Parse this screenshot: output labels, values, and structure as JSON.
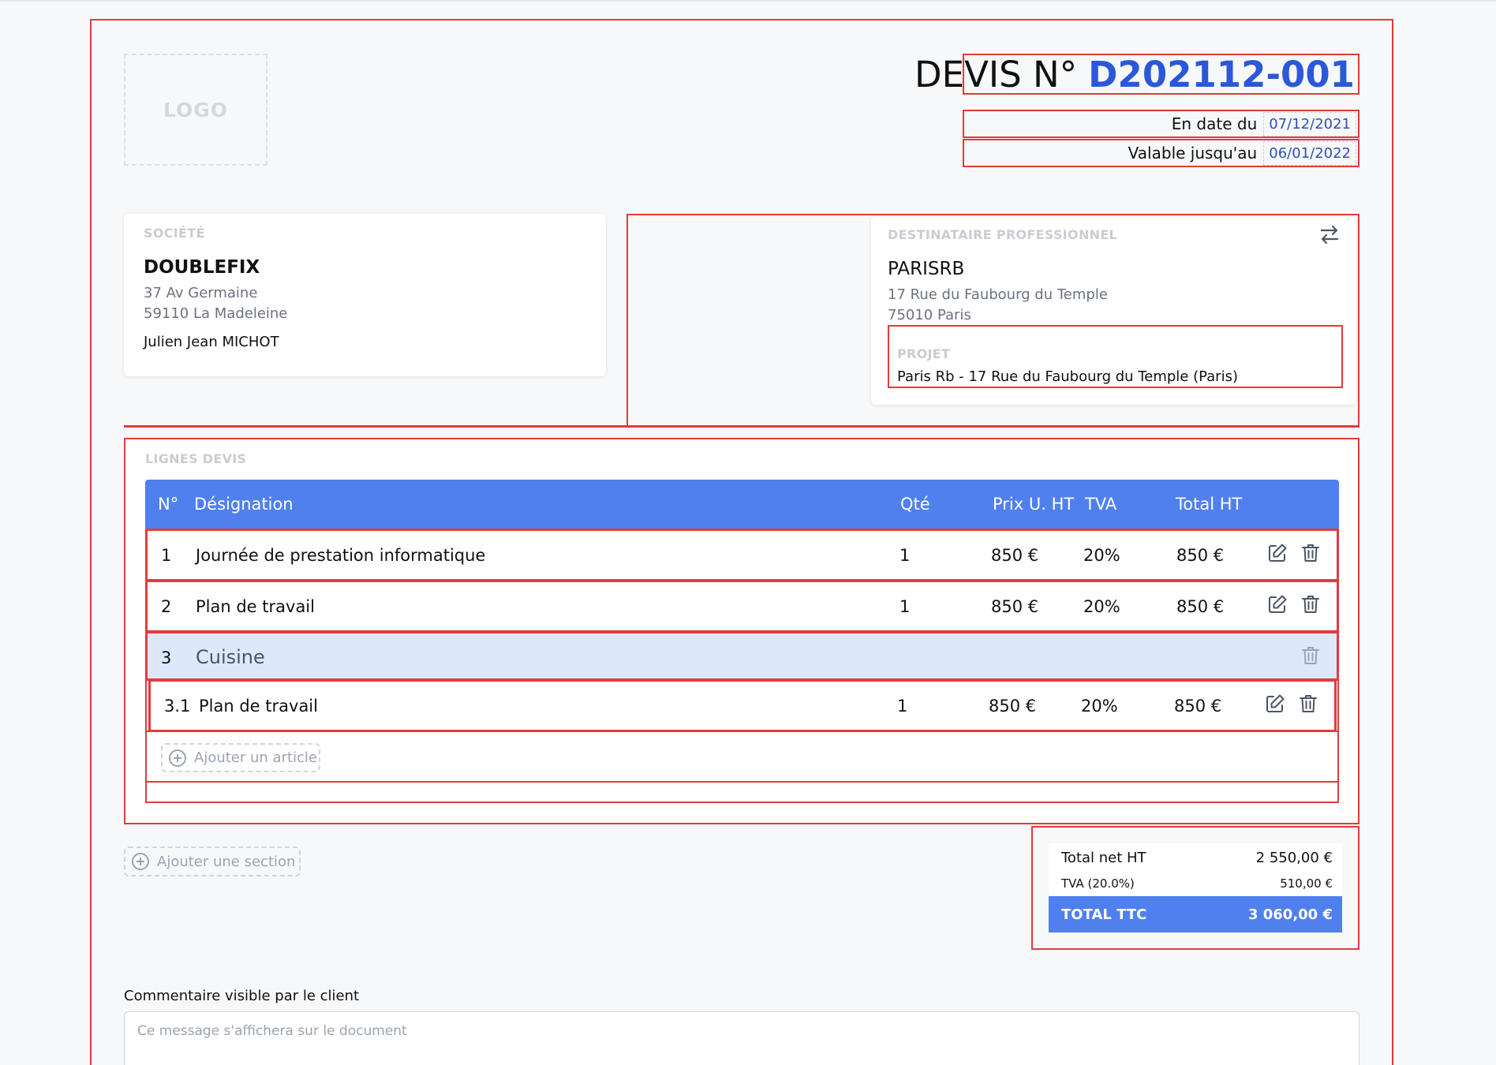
{
  "logo": {
    "label": "LOGO"
  },
  "quote": {
    "title_label": "DEVIS N°",
    "number": "D202112-001",
    "date_label": "En date du",
    "date_value": "07/12/2021",
    "valid_label": "Valable jusqu'au",
    "valid_value": "06/01/2022"
  },
  "company": {
    "section_label": "SOCIÉTÉ",
    "name": "DOUBLEFIX",
    "address_line1": "37 Av Germaine",
    "address_line2": "59110 La Madeleine",
    "contact": "Julien Jean MICHOT"
  },
  "recipient": {
    "section_label": "DESTINATAIRE PROFESSIONNEL",
    "name": "PARISRB",
    "address_line1": "17 Rue du Faubourg du Temple",
    "address_line2": "75010 Paris",
    "project_label": "PROJET",
    "project_value": "Paris Rb - 17 Rue du Faubourg du Temple (Paris)",
    "swap_icon": "swap-arrows-icon"
  },
  "lines": {
    "section_label": "LIGNES DEVIS",
    "headers": {
      "num": "N°",
      "designation": "Désignation",
      "qty": "Qté",
      "unit_price": "Prix U. HT",
      "vat": "TVA",
      "total": "Total HT"
    },
    "rows": [
      {
        "num": "1",
        "designation": "Journée de prestation informatique",
        "qty": "1",
        "unit_price": "850 €",
        "vat": "20%",
        "total": "850 €"
      },
      {
        "num": "2",
        "designation": "Plan de travail",
        "qty": "1",
        "unit_price": "850 €",
        "vat": "20%",
        "total": "850 €"
      }
    ],
    "section": {
      "num": "3",
      "title": "Cuisine"
    },
    "sub_rows": [
      {
        "num": "3.1",
        "designation": "Plan de travail",
        "qty": "1",
        "unit_price": "850 €",
        "vat": "20%",
        "total": "850 €"
      }
    ],
    "add_article_label": "Ajouter un article"
  },
  "add_section_label": "Ajouter une section",
  "totals": {
    "net_label": "Total net HT",
    "net_value": "2 550,00 €",
    "vat_label": "TVA (20.0%)",
    "vat_value": "510,00 €",
    "ttc_label": "TOTAL TTC",
    "ttc_value": "3 060,00 €"
  },
  "comment": {
    "label": "Commentaire visible par le client",
    "placeholder": "Ce message s'affichera sur le document"
  },
  "colors": {
    "accent": "#4f80ee",
    "number_blue": "#2b58d8",
    "highlight_red": "#e23b3b",
    "section_row_bg": "#dde8fb"
  }
}
